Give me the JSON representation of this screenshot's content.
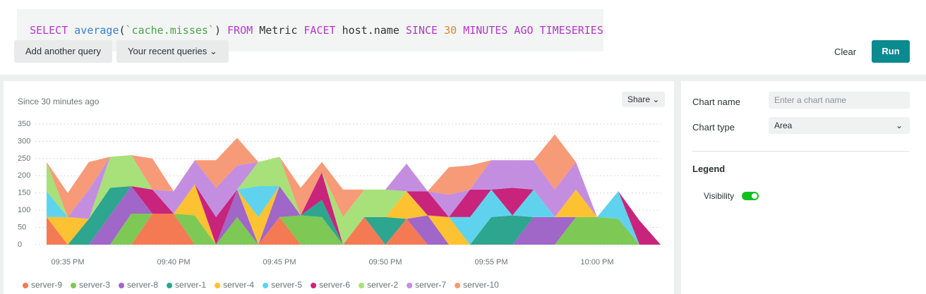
{
  "query": {
    "tokens": [
      "SELECT ",
      "average",
      "(",
      "`cache.misses`",
      ") ",
      "FROM ",
      "Metric ",
      "FACET ",
      "host.name ",
      "SINCE ",
      "30 ",
      "MINUTES AGO TIMESERIES"
    ]
  },
  "toolbar": {
    "add_query": "Add another query",
    "recent_queries": "Your recent queries",
    "clear": "Clear",
    "run": "Run"
  },
  "chart_header": {
    "since": "Since 30 minutes ago",
    "share": "Share"
  },
  "settings": {
    "chart_name_label": "Chart name",
    "chart_name_placeholder": "Enter a chart name",
    "chart_type_label": "Chart type",
    "chart_type_value": "Area",
    "legend_heading": "Legend",
    "visibility_label": "Visibility"
  },
  "chart_data": {
    "type": "stacked-area",
    "categories": [
      null,
      "09:35 PM",
      null,
      null,
      null,
      null,
      "09:40 PM",
      null,
      null,
      null,
      null,
      "09:45 PM",
      null,
      null,
      null,
      null,
      "09:50 PM",
      null,
      null,
      null,
      null,
      "09:55 PM",
      null,
      null,
      null,
      null,
      "10:00 PM",
      null,
      null,
      null
    ],
    "ylim": [
      0,
      350
    ],
    "yticks": [
      0,
      50,
      100,
      150,
      200,
      250,
      300,
      350
    ],
    "grid": true,
    "series": [
      {
        "name": "server-9",
        "color": "#f47a53",
        "values": [
          80,
          0,
          0,
          0,
          0,
          90,
          90,
          0,
          0,
          0,
          0,
          80,
          0,
          0,
          0,
          80,
          0,
          75,
          0,
          0,
          0,
          0,
          0,
          0,
          0,
          0,
          0,
          0,
          0,
          0
        ]
      },
      {
        "name": "server-3",
        "color": "#7ec855",
        "values": [
          0,
          0,
          0,
          0,
          90,
          0,
          0,
          85,
          0,
          80,
          0,
          0,
          85,
          80,
          0,
          0,
          0,
          0,
          0,
          0,
          0,
          0,
          0,
          0,
          0,
          80,
          80,
          75,
          0,
          0
        ]
      },
      {
        "name": "server-8",
        "color": "#a066c8",
        "values": [
          0,
          0,
          0,
          85,
          80,
          0,
          0,
          0,
          0,
          80,
          0,
          90,
          0,
          0,
          0,
          0,
          0,
          0,
          85,
          0,
          0,
          0,
          0,
          80,
          80,
          0,
          0,
          0,
          0,
          0
        ]
      },
      {
        "name": "server-1",
        "color": "#2ea58f",
        "values": [
          0,
          0,
          75,
          80,
          0,
          0,
          0,
          0,
          0,
          0,
          0,
          0,
          0,
          50,
          0,
          0,
          80,
          0,
          0,
          0,
          0,
          80,
          85,
          0,
          0,
          0,
          0,
          0,
          0,
          0
        ]
      },
      {
        "name": "server-4",
        "color": "#fcc232",
        "values": [
          0,
          80,
          0,
          0,
          0,
          0,
          0,
          90,
          0,
          0,
          80,
          0,
          0,
          0,
          0,
          0,
          0,
          80,
          0,
          80,
          0,
          0,
          0,
          0,
          0,
          80,
          0,
          0,
          0,
          0
        ]
      },
      {
        "name": "server-5",
        "color": "#5fd3ee",
        "values": [
          75,
          0,
          0,
          0,
          0,
          0,
          0,
          0,
          0,
          0,
          90,
          0,
          0,
          0,
          0,
          0,
          0,
          0,
          0,
          0,
          80,
          80,
          0,
          80,
          0,
          0,
          0,
          80,
          0,
          0
        ]
      },
      {
        "name": "server-6",
        "color": "#c8247c",
        "values": [
          0,
          0,
          0,
          0,
          0,
          70,
          0,
          0,
          80,
          0,
          0,
          0,
          0,
          80,
          0,
          0,
          0,
          0,
          70,
          0,
          80,
          0,
          80,
          0,
          0,
          0,
          0,
          0,
          70,
          0
        ]
      },
      {
        "name": "server-2",
        "color": "#a8e07a",
        "values": [
          85,
          0,
          0,
          90,
          90,
          0,
          0,
          0,
          0,
          0,
          70,
          85,
          0,
          0,
          80,
          80,
          80,
          0,
          0,
          0,
          0,
          0,
          0,
          0,
          0,
          0,
          0,
          0,
          0,
          0
        ]
      },
      {
        "name": "server-7",
        "color": "#c38ee0",
        "values": [
          0,
          0,
          85,
          0,
          0,
          0,
          65,
          70,
          85,
          70,
          0,
          0,
          0,
          0,
          0,
          0,
          0,
          80,
          0,
          65,
          0,
          85,
          80,
          85,
          80,
          80,
          0,
          0,
          0,
          0
        ]
      },
      {
        "name": "server-10",
        "color": "#f79a78",
        "values": [
          0,
          70,
          80,
          0,
          0,
          90,
          0,
          0,
          80,
          80,
          0,
          0,
          80,
          30,
          80,
          0,
          0,
          0,
          0,
          80,
          70,
          0,
          0,
          0,
          160,
          0,
          0,
          0,
          0,
          0
        ]
      }
    ]
  }
}
